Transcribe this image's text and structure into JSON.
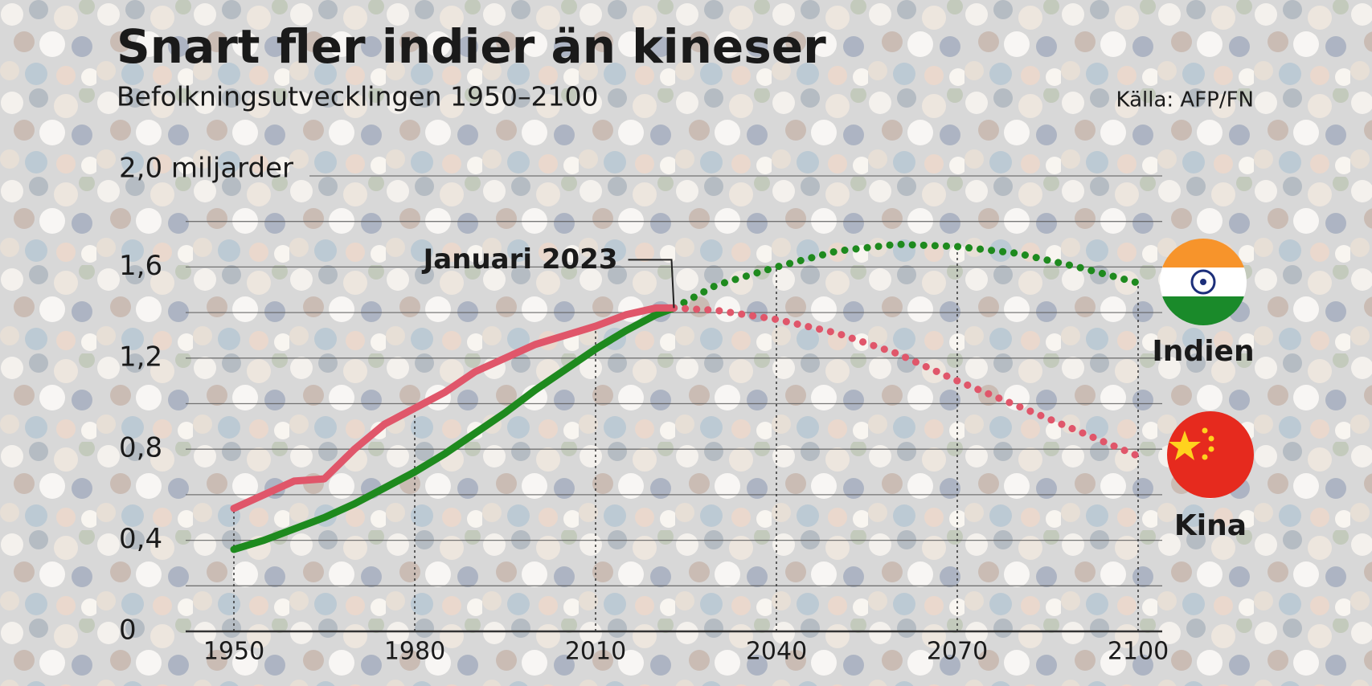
{
  "chart_data": {
    "type": "line",
    "title": "Snart fler indier än kineser",
    "subtitle": "Befolkningsutvecklingen 1950–2100",
    "source": "Källa: AFP/FN",
    "annotation": {
      "text": "Januari 2023",
      "x": 2023
    },
    "x": [
      1950,
      1955,
      1960,
      1965,
      1970,
      1975,
      1980,
      1985,
      1990,
      1995,
      2000,
      2005,
      2010,
      2015,
      2020,
      2023,
      2030,
      2040,
      2050,
      2060,
      2070,
      2080,
      2090,
      2100
    ],
    "series": [
      {
        "name": "Indien",
        "color": "#1e8a1e",
        "values": [
          0.36,
          0.4,
          0.45,
          0.5,
          0.56,
          0.63,
          0.7,
          0.78,
          0.87,
          0.96,
          1.06,
          1.15,
          1.24,
          1.32,
          1.39,
          1.42,
          1.52,
          1.6,
          1.67,
          1.7,
          1.69,
          1.66,
          1.6,
          1.53
        ]
      },
      {
        "name": "Kina",
        "color": "#e0566a",
        "values": [
          0.54,
          0.6,
          0.66,
          0.67,
          0.8,
          0.91,
          0.98,
          1.05,
          1.14,
          1.2,
          1.26,
          1.3,
          1.34,
          1.39,
          1.42,
          1.42,
          1.41,
          1.37,
          1.31,
          1.22,
          1.1,
          0.99,
          0.88,
          0.77
        ]
      }
    ],
    "xlim": [
      1942,
      2104
    ],
    "xticks": [
      1950,
      1980,
      2010,
      2040,
      2070,
      2100
    ],
    "ylim": [
      0,
      2
    ],
    "yticks": [
      0,
      {
        "value": 0.4,
        "label": "0,4"
      },
      {
        "value": 0.8,
        "label": "0,8"
      },
      {
        "value": 1.2,
        "label": "1,2"
      },
      {
        "value": 1.6,
        "label": "1,6"
      },
      {
        "value": 2,
        "label": "2,0 miljarder"
      }
    ],
    "minor_yticks": [
      0.2,
      0.6,
      1.0,
      1.4,
      1.8
    ],
    "grid": true
  }
}
